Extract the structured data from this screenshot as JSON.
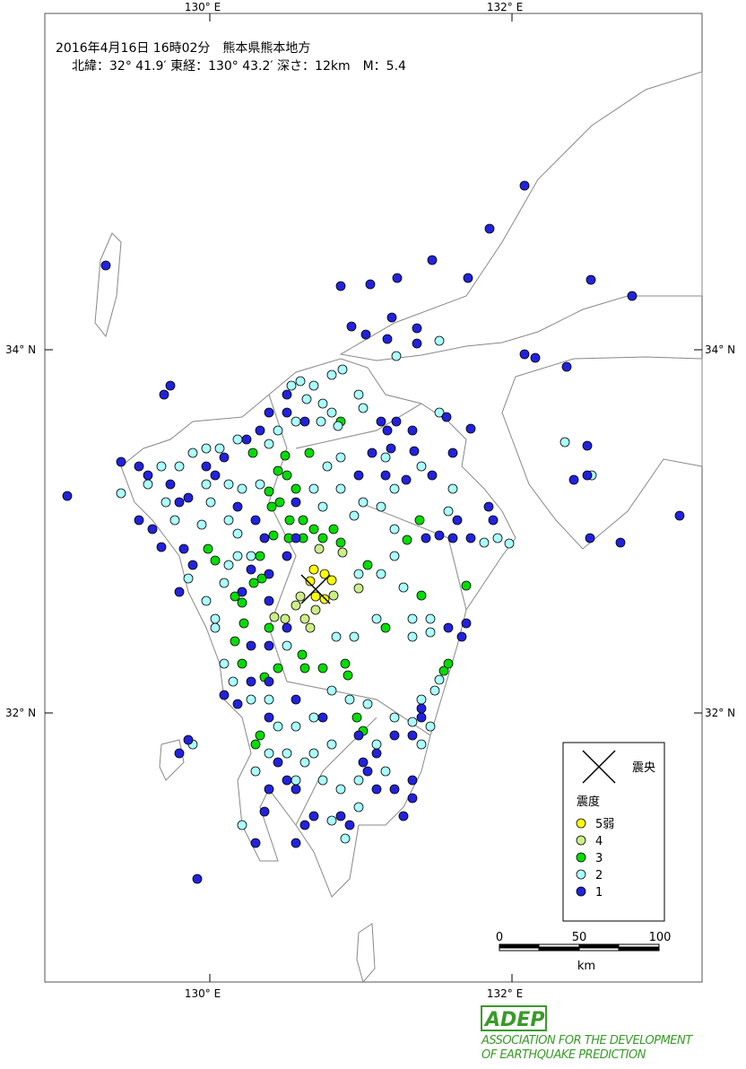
{
  "header": {
    "line1": "2016年4月16日 16時02分　熊本県熊本地方",
    "line2": "北緯：32° 41.9′ 東経：130° 43.2′ 深さ：12km　M：5.4"
  },
  "axes": {
    "top": [
      "130° E",
      "132° E"
    ],
    "bottom": [
      "130° E",
      "132° E"
    ],
    "left": [
      "34° N",
      "32° N"
    ],
    "right": [
      "34° N",
      "32° N"
    ]
  },
  "legend": {
    "epicenter": "震央",
    "title": "震度",
    "items": [
      {
        "label": "5弱",
        "color": "#ffff00"
      },
      {
        "label": "4",
        "color": "#ccee88"
      },
      {
        "label": "3",
        "color": "#00dd00"
      },
      {
        "label": "2",
        "color": "#aaffff"
      },
      {
        "label": "1",
        "color": "#2222dd"
      }
    ]
  },
  "scale": {
    "labels": [
      "0",
      "50",
      "100"
    ],
    "unit": "km"
  },
  "logo": {
    "mark": "ADEP",
    "lines": [
      "ASSOCIATION FOR THE DEVELOPMENT",
      "OF EARTHQUAKE PREDICTION"
    ]
  }
}
